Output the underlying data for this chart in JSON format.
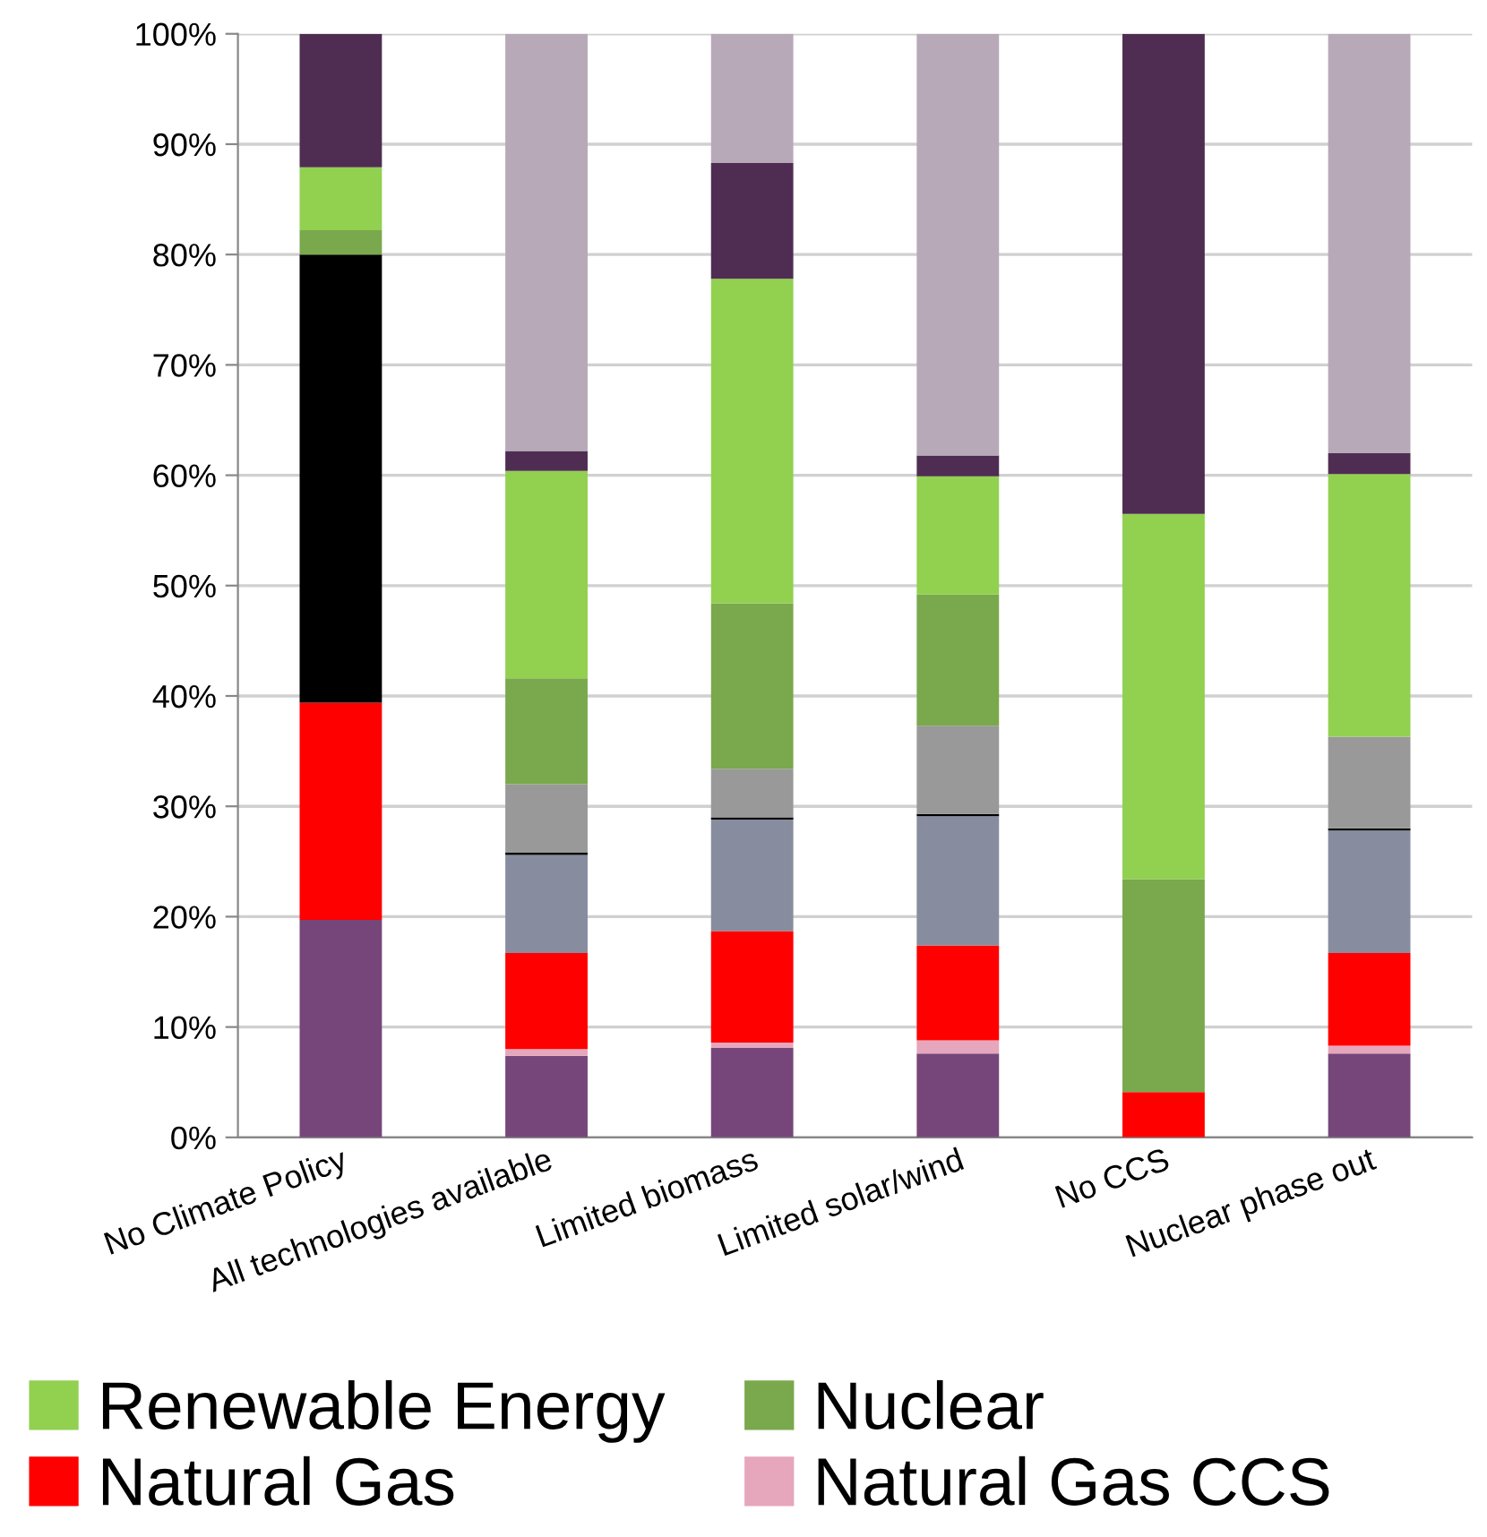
{
  "chart_data": {
    "type": "bar",
    "stacked": true,
    "categories": [
      "No Climate Policy",
      "All technologies available",
      "Limited biomass",
      "Limited solar/wind",
      "No CCS",
      "Nuclear phase out"
    ],
    "series": [
      {
        "color": "#76467a",
        "values": [
          19.7,
          7.4,
          8.1,
          7.6,
          0,
          7.6
        ]
      },
      {
        "name": "Natural Gas CCS",
        "color": "#e6a6bc",
        "values": [
          0,
          0.6,
          0.5,
          1.2,
          0,
          0.7
        ]
      },
      {
        "name": "Natural Gas",
        "color": "#ff0000",
        "values": [
          19.7,
          8.7,
          10.1,
          8.6,
          4.1,
          8.4
        ]
      },
      {
        "color": "#878c9f",
        "values": [
          0,
          8.9,
          10.1,
          11.7,
          0,
          11.1
        ]
      },
      {
        "color": "#000000",
        "values": [
          40.6,
          0.2,
          0.2,
          0.2,
          0,
          0.2
        ]
      },
      {
        "color": "#999999",
        "values": [
          0,
          6.2,
          4.4,
          8.0,
          0,
          8.3
        ]
      },
      {
        "name": "Nuclear",
        "color": "#7aa84c",
        "values": [
          2.2,
          9.6,
          15.0,
          11.9,
          19.3,
          0
        ]
      },
      {
        "name": "Renewable Energy",
        "color": "#92d050",
        "values": [
          5.7,
          18.8,
          29.4,
          10.7,
          33.1,
          23.8
        ]
      },
      {
        "color": "#4f2d52",
        "values": [
          12.1,
          1.8,
          10.5,
          1.9,
          43.5,
          1.9
        ]
      },
      {
        "color": "#b7a9b8",
        "values": [
          0,
          37.8,
          11.7,
          38.2,
          0,
          38.0
        ]
      }
    ],
    "ylim": [
      0,
      100
    ],
    "yticks": [
      {
        "value": 0,
        "label": "0%"
      },
      {
        "value": 10,
        "label": "10%"
      },
      {
        "value": 20,
        "label": "20%"
      },
      {
        "value": 30,
        "label": "30%"
      },
      {
        "value": 40,
        "label": "40%"
      },
      {
        "value": 50,
        "label": "50%"
      },
      {
        "value": 60,
        "label": "60%"
      },
      {
        "value": 70,
        "label": "70%"
      },
      {
        "value": 80,
        "label": "80%"
      },
      {
        "value": 90,
        "label": "90%"
      },
      {
        "value": 100,
        "label": "100%"
      }
    ],
    "grid": "y",
    "legend": "bottom"
  }
}
